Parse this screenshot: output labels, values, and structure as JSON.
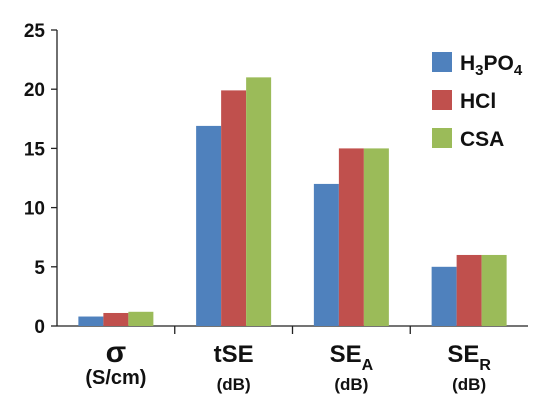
{
  "chart_data": {
    "type": "bar",
    "title": "",
    "xlabel": "",
    "ylabel": "",
    "ylim": [
      0,
      25
    ],
    "yticks": [
      "0",
      "5",
      "10",
      "15",
      "20",
      "25"
    ],
    "grid": false,
    "legend_position": "top-right",
    "categories": [
      {
        "main": "σ",
        "sub": "",
        "unit": "(S/cm)"
      },
      {
        "main": "tSE",
        "sub": "",
        "unit": "(dB)"
      },
      {
        "main": "SE",
        "sub": "A",
        "unit": "(dB)"
      },
      {
        "main": "SE",
        "sub": "R",
        "unit": "(dB)"
      }
    ],
    "series": [
      {
        "name": "H3PO4",
        "name_parts": [
          "H",
          "3",
          "PO",
          "4"
        ],
        "color": "#4f81bd",
        "values": [
          0.8,
          16.9,
          12.0,
          5.0
        ]
      },
      {
        "name": "HCl",
        "name_parts": [
          "HCl"
        ],
        "color": "#c0504d",
        "values": [
          1.1,
          19.9,
          15.0,
          6.0
        ]
      },
      {
        "name": "CSA",
        "name_parts": [
          "CSA"
        ],
        "color": "#9bbb59",
        "values": [
          1.2,
          21.0,
          15.0,
          6.0
        ]
      }
    ]
  }
}
